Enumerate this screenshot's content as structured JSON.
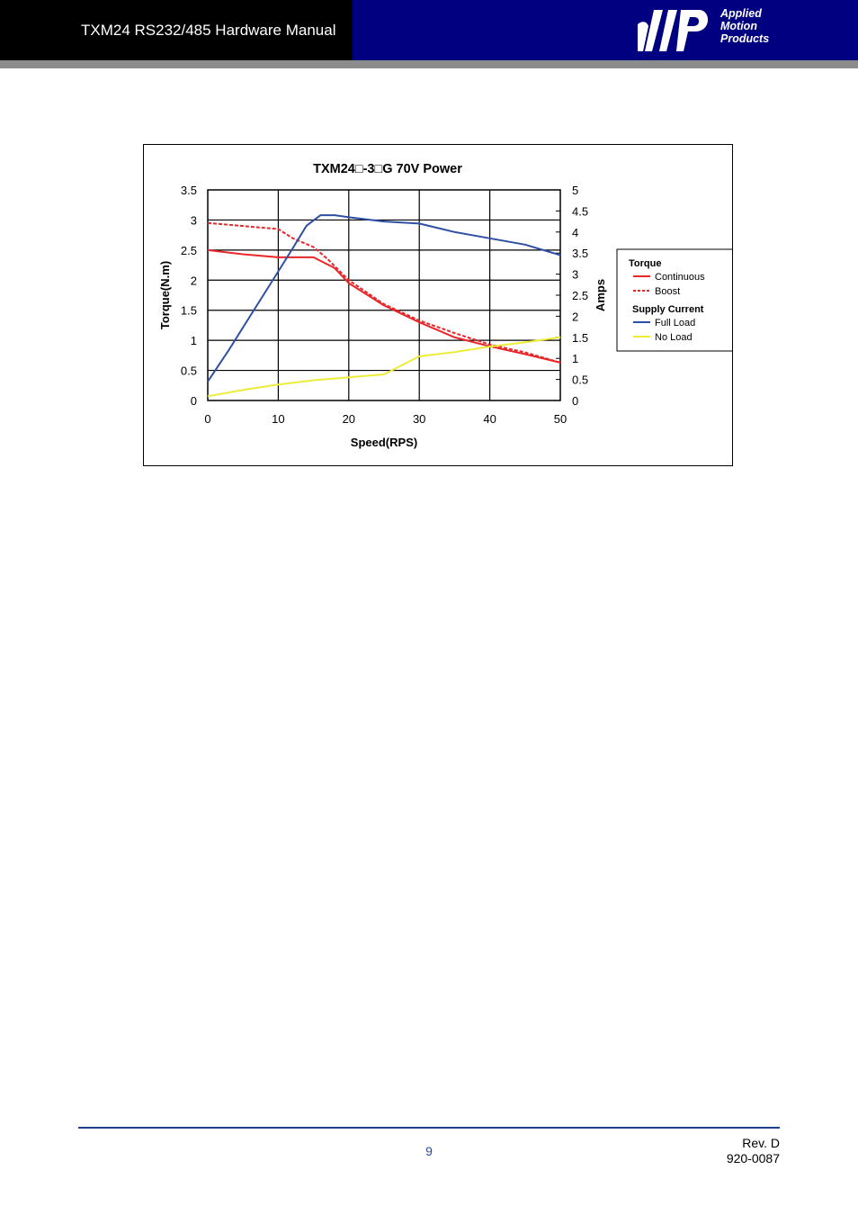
{
  "header": {
    "title": "TXM24 RS232/485 Hardware Manual",
    "logo_lines": [
      "Applied",
      "Motion",
      "Products"
    ]
  },
  "chart_data": {
    "type": "line",
    "title": "TXM24□-3□G 70V Power",
    "xlabel": "Speed(RPS)",
    "ylabel_left": "Torque(N.m)",
    "ylabel_right": "Amps",
    "xlim": [
      0,
      50
    ],
    "ylim_left": [
      0,
      3.5
    ],
    "ylim_right": [
      0,
      5
    ],
    "x_ticks": [
      "0",
      "10",
      "20",
      "30",
      "40",
      "50"
    ],
    "y_left_ticks": [
      "0",
      "0.5",
      "1",
      "1.5",
      "2",
      "2.5",
      "3",
      "3.5"
    ],
    "y_right_ticks": [
      "0",
      "0.5",
      "1",
      "1.5",
      "2",
      "2.5",
      "3",
      "3.5",
      "4",
      "4.5",
      "5"
    ],
    "grid": true,
    "legend_position": "right",
    "legend": {
      "groups": [
        {
          "title": "Torque",
          "entries": [
            "Continuous",
            "Boost"
          ]
        },
        {
          "title": "Supply Current",
          "entries": [
            "Full Load",
            "No Load"
          ]
        }
      ]
    },
    "series": [
      {
        "name": "Continuous",
        "group": "Torque",
        "axis": "left",
        "color": "#e8272b",
        "dash": false,
        "x": [
          0,
          5,
          10,
          15,
          18,
          20,
          25,
          30,
          35,
          40,
          45,
          50
        ],
        "y": [
          2.5,
          2.43,
          2.38,
          2.38,
          2.2,
          1.95,
          1.58,
          1.3,
          1.05,
          0.9,
          0.77,
          0.63
        ]
      },
      {
        "name": "Boost",
        "group": "Torque",
        "axis": "left",
        "color": "#e8272b",
        "dash": true,
        "x": [
          0,
          5,
          10,
          12,
          15,
          17,
          20,
          25,
          30,
          35,
          40,
          45,
          50
        ],
        "y": [
          2.95,
          2.9,
          2.85,
          2.7,
          2.55,
          2.35,
          2.0,
          1.6,
          1.33,
          1.12,
          0.93,
          0.8,
          0.63
        ]
      },
      {
        "name": "Full Load",
        "group": "Supply Current",
        "axis": "right",
        "color": "#2e4fa3",
        "dash": false,
        "x": [
          0,
          3,
          6,
          9,
          12,
          14,
          16,
          18,
          20,
          25,
          30,
          35,
          40,
          45,
          50
        ],
        "y": [
          0.45,
          1.2,
          2.0,
          2.8,
          3.6,
          4.15,
          4.4,
          4.4,
          4.35,
          4.25,
          4.2,
          4.0,
          3.85,
          3.7,
          3.45
        ]
      },
      {
        "name": "No Load",
        "group": "Supply Current",
        "axis": "right",
        "color": "#ecec39",
        "dash": false,
        "x": [
          0,
          5,
          10,
          15,
          20,
          25,
          30,
          35,
          40,
          45,
          50
        ],
        "y": [
          0.1,
          0.25,
          0.38,
          0.48,
          0.55,
          0.62,
          1.05,
          1.15,
          1.28,
          1.38,
          1.5
        ]
      }
    ]
  },
  "footer": {
    "page_number": "9",
    "revision": "Rev. D",
    "doc_number": "920-0087"
  }
}
